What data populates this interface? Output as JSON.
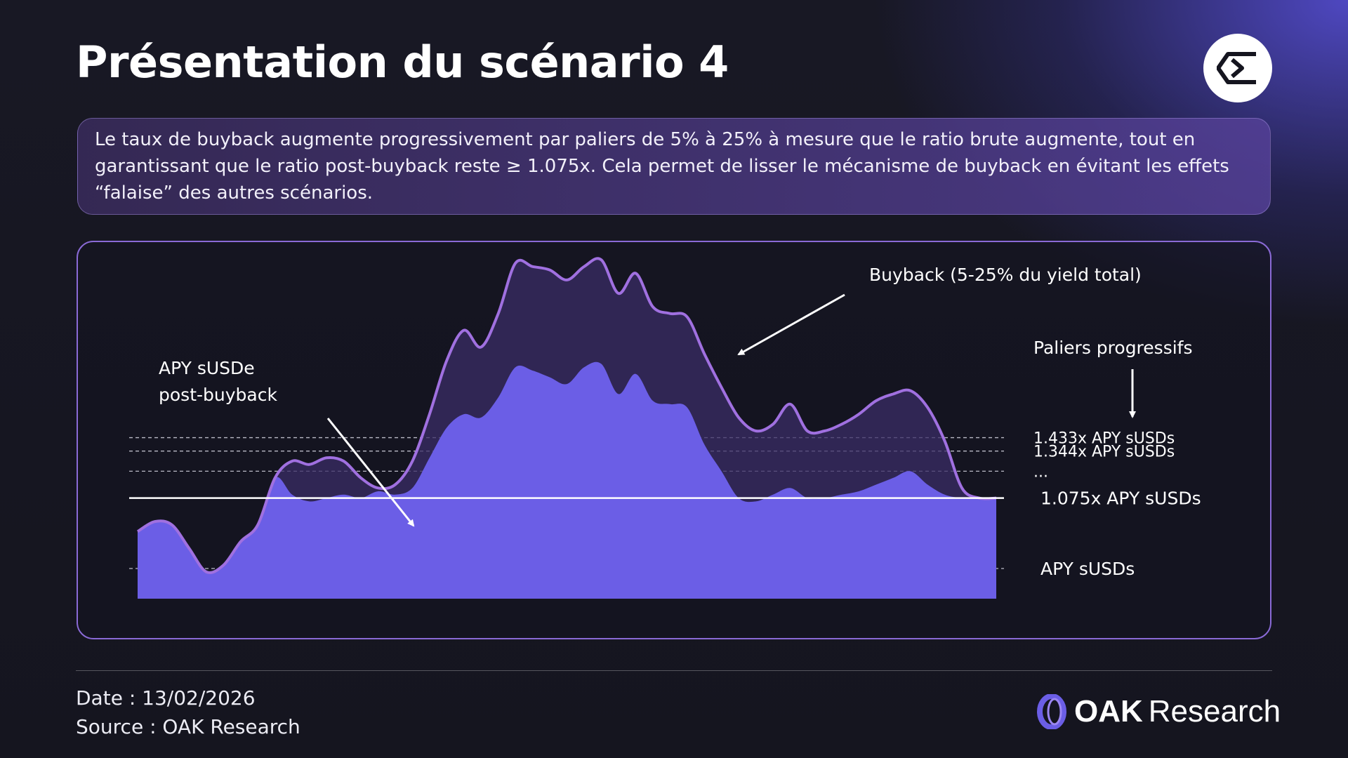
{
  "header": {
    "title": "Présentation du scénario 4"
  },
  "description": {
    "text": "Le taux de buyback augmente progressivement par paliers de 5% à 25% à mesure que le ratio brute augmente, tout en garantissant que le ratio post-buyback reste ≥ 1.075x. Cela permet de lisser le mécanisme de buyback en évitant les effets “falaise” des autres scénarios."
  },
  "chart_data": {
    "type": "area",
    "title": "",
    "xlabel": "",
    "ylabel": "",
    "ylim": [
      0,
      1
    ],
    "x": [
      0,
      1,
      2,
      3,
      4,
      5,
      6,
      7,
      8,
      9,
      10,
      11,
      12,
      13,
      14,
      15,
      16,
      17,
      18,
      19,
      20,
      21,
      22,
      23,
      24,
      25,
      26,
      27,
      28,
      29,
      30,
      31,
      32,
      33,
      34,
      35,
      36,
      37,
      38,
      39,
      40,
      41,
      42,
      43,
      44,
      45,
      46,
      47,
      48,
      49,
      50
    ],
    "series": [
      {
        "name": "Buyback (5-25% du yield total)",
        "values": [
          0.2,
          0.23,
          0.22,
          0.15,
          0.08,
          0.1,
          0.17,
          0.22,
          0.36,
          0.41,
          0.4,
          0.42,
          0.41,
          0.36,
          0.33,
          0.34,
          0.41,
          0.55,
          0.71,
          0.8,
          0.75,
          0.85,
          1.0,
          0.99,
          0.98,
          0.95,
          0.99,
          1.01,
          0.91,
          0.97,
          0.87,
          0.85,
          0.84,
          0.73,
          0.63,
          0.54,
          0.5,
          0.52,
          0.58,
          0.5,
          0.5,
          0.52,
          0.55,
          0.59,
          0.61,
          0.62,
          0.57,
          0.47,
          0.33,
          0.3,
          0.3
        ]
      },
      {
        "name": "APY sUSDe post-buyback",
        "values": [
          0.2,
          0.23,
          0.22,
          0.15,
          0.08,
          0.1,
          0.17,
          0.22,
          0.36,
          0.31,
          0.29,
          0.3,
          0.31,
          0.3,
          0.32,
          0.31,
          0.33,
          0.42,
          0.51,
          0.55,
          0.54,
          0.6,
          0.69,
          0.68,
          0.66,
          0.64,
          0.69,
          0.7,
          0.61,
          0.67,
          0.59,
          0.58,
          0.57,
          0.46,
          0.38,
          0.3,
          0.29,
          0.31,
          0.33,
          0.3,
          0.3,
          0.31,
          0.32,
          0.34,
          0.36,
          0.38,
          0.34,
          0.31,
          0.3,
          0.3,
          0.3
        ]
      }
    ],
    "reference_lines": [
      {
        "label": "1.433x APY sUSDs",
        "value": 0.48,
        "style": "dashed"
      },
      {
        "label": "1.344x APY sUSDs",
        "value": 0.44,
        "style": "dashed"
      },
      {
        "label": "...",
        "value": 0.38,
        "style": "dashed"
      },
      {
        "label": "1.075x APY sUSDs",
        "value": 0.3,
        "style": "solid"
      },
      {
        "label": "APY sUSDs",
        "value": 0.09,
        "style": "dashed"
      }
    ],
    "annotations": {
      "buyback": "Buyback (5-25% du yield total)",
      "paliers": "Paliers progressifs",
      "apy_line1": "APY sUSDe",
      "apy_line2": "post-buyback"
    },
    "colors": {
      "base_fill": "#6b5ee6",
      "buyback_fill": "#3a2c66",
      "buyback_line": "#a070e0",
      "reference": "#d8d8e4"
    }
  },
  "footer": {
    "date": "Date : 13/02/2026",
    "source": "Source : OAK Research",
    "brand_strong": "OAK",
    "brand_light": "Research"
  },
  "icons": {
    "logo": "sigma-hexagon-icon",
    "brand": "oak-ring-icon"
  }
}
